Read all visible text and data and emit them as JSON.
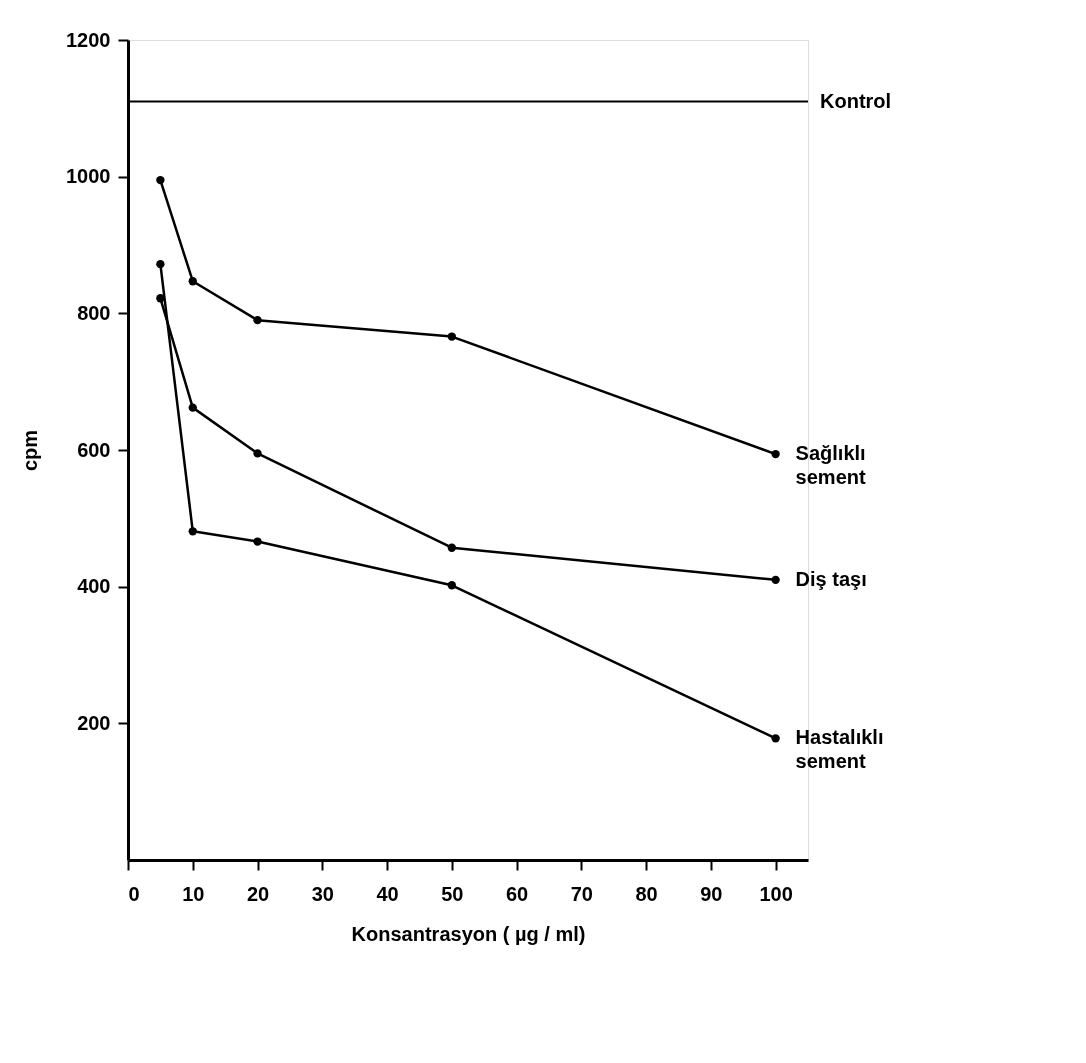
{
  "chart_data": {
    "type": "line",
    "xlabel": "Konsantrasyon ( µg / ml)",
    "ylabel": "cpm",
    "x": [
      5,
      10,
      20,
      50,
      100
    ],
    "series": [
      {
        "name": "Sağlıklı\nsement",
        "color": "#000000",
        "values": [
          995,
          847,
          790,
          766,
          594
        ]
      },
      {
        "name": "Diş taşı",
        "color": "#000000",
        "values": [
          822,
          662,
          595,
          457,
          410
        ]
      },
      {
        "name": "Hastalıklı\nsement",
        "color": "#000000",
        "values": [
          872,
          481,
          466,
          402,
          178
        ]
      }
    ],
    "ref_lines": [
      {
        "axis": "y",
        "value": 1110,
        "label": "Kontrol",
        "color": "#000000"
      }
    ],
    "xlim": [
      0,
      105
    ],
    "xticks": [
      0,
      10,
      20,
      30,
      40,
      50,
      60,
      70,
      80,
      90,
      100
    ],
    "ylim": [
      0,
      1200
    ],
    "yticks": [
      200,
      400,
      600,
      800,
      1000,
      1200
    ],
    "grid": false,
    "legend": false,
    "marker": "circle",
    "line_style": "solid"
  }
}
